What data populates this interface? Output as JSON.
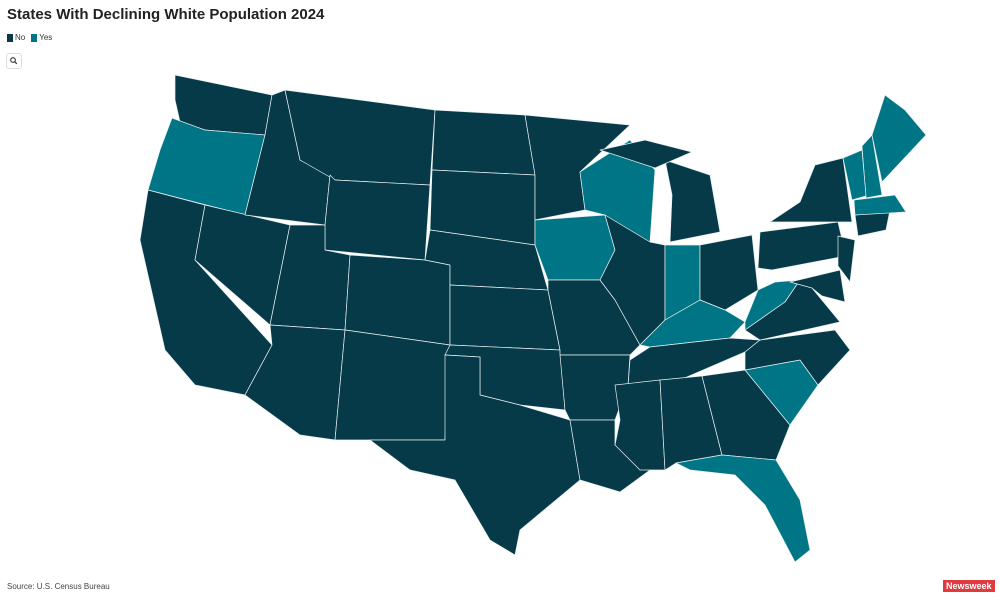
{
  "map_data": {
    "title": "States With Declining White Population 2024",
    "legend": [
      {
        "label": "No",
        "color": "#063a48"
      },
      {
        "label": "Yes",
        "color": "#007585"
      }
    ],
    "values": [
      "No",
      "Yes",
      "No",
      "No",
      "No",
      "No",
      "No",
      "No",
      "No",
      "No",
      "No",
      "No",
      "No",
      "No",
      "No",
      "No",
      "No",
      "No",
      "Yes",
      "No",
      "Yes",
      "No",
      "Yes",
      "No",
      "No",
      "No",
      "Yes",
      "No",
      "No",
      "No",
      "No",
      "No",
      "No",
      "Yes",
      "Yes",
      "No",
      "Yes",
      "No",
      "No",
      "No",
      "No",
      "No",
      "No",
      "Yes",
      "Yes",
      "Yes",
      "Yes"
    ],
    "source": "Source: U.S. Census Bureau",
    "logo": "Newsweek"
  }
}
